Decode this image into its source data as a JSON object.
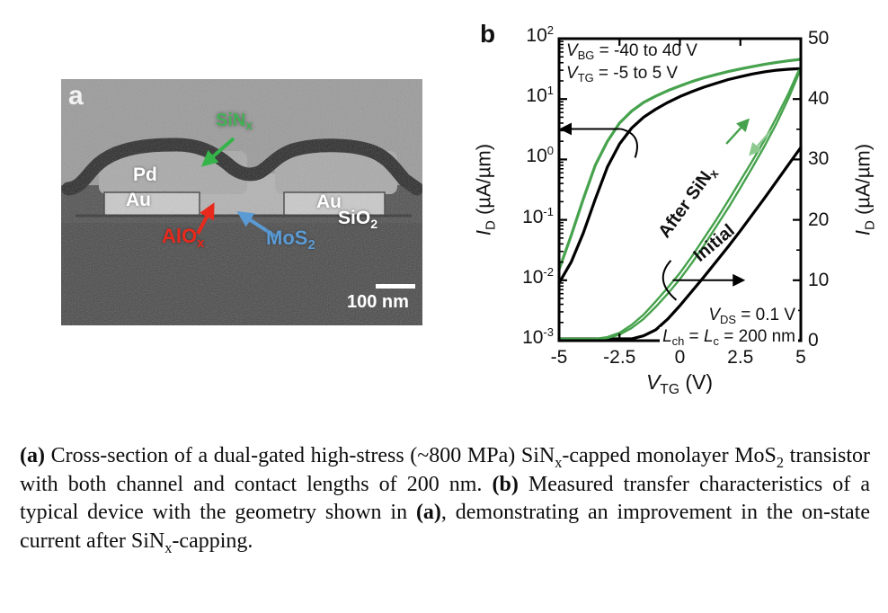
{
  "panel_a": {
    "label": "a",
    "labels": {
      "sin": [
        {
          "t": "SiN"
        },
        {
          "t": "x",
          "sub": 1
        }
      ],
      "pd": "Pd",
      "au_left": "Au",
      "au_right": "Au",
      "sio2": [
        {
          "t": "SiO"
        },
        {
          "t": "2",
          "sub": 1
        }
      ],
      "alox": [
        {
          "t": "AlO"
        },
        {
          "t": "x",
          "sub": 1
        }
      ],
      "mos2": [
        {
          "t": "MoS"
        },
        {
          "t": "2",
          "sub": 1
        }
      ],
      "scale_bar": "100 nm"
    },
    "colors": {
      "sin_arrow": "#35b44a",
      "alox_arrow": "#e8291c",
      "mos2_arrow": "#5b9bd5",
      "text": "#ffffff"
    }
  },
  "panel_b": {
    "label": "b",
    "chart_data": {
      "type": "line",
      "x_axis": {
        "label_segments": [
          {
            "t": "V",
            "i": 1
          },
          {
            "t": "TG",
            "sub": 1
          },
          {
            "t": " (V)"
          }
        ],
        "ticks": [
          -5,
          -2.5,
          0,
          2.5,
          5
        ],
        "range": [
          -5,
          5
        ]
      },
      "left_axis": {
        "label_segments": [
          {
            "t": "I",
            "i": 1
          },
          {
            "t": "D",
            "sub": 1
          },
          {
            "t": " (µA/µm)"
          }
        ],
        "scale": "log",
        "tick_exponents": [
          2,
          1,
          0,
          -1,
          -2,
          -3
        ],
        "range_exp": [
          -3,
          2
        ]
      },
      "right_axis": {
        "label_segments": [
          {
            "t": "I",
            "i": 1
          },
          {
            "t": "D",
            "sub": 1
          },
          {
            "t": " (µA/µm)"
          }
        ],
        "scale": "linear",
        "ticks": [
          50,
          40,
          30,
          20,
          10,
          0
        ],
        "minor_step": 5,
        "range": [
          0,
          50
        ]
      },
      "annotations": {
        "vbg": [
          {
            "t": "V",
            "i": 1
          },
          {
            "t": "BG",
            "sub": 1
          },
          {
            "t": " = -40 to 40 V"
          }
        ],
        "vtg": [
          {
            "t": "V",
            "i": 1
          },
          {
            "t": "TG",
            "sub": 1
          },
          {
            "t": " = -5 to 5 V"
          }
        ],
        "vds": [
          {
            "t": "V",
            "i": 1
          },
          {
            "t": "DS",
            "sub": 1
          },
          {
            "t": " = 0.1 V"
          }
        ],
        "lch": [
          {
            "t": "L",
            "i": 1
          },
          {
            "t": "ch",
            "sub": 1
          },
          {
            "t": " = "
          },
          {
            "t": "L",
            "i": 1
          },
          {
            "t": "c",
            "sub": 1
          },
          {
            "t": " = 200 nm"
          }
        ]
      },
      "curve_labels": {
        "after_sin": {
          "segments": [
            {
              "t": "After SiN"
            },
            {
              "t": "x",
              "sub": 1
            }
          ],
          "color": "#46a24c"
        },
        "initial": {
          "segments": [
            {
              "t": "Initial"
            }
          ],
          "color": "#000000"
        }
      },
      "series": [
        {
          "name": "Initial (log scale, left axis)",
          "color": "#000000",
          "axis": "log",
          "width": 3.2,
          "x": [
            -5,
            -4.5,
            -4,
            -3.5,
            -3,
            -2.5,
            -2,
            -1.5,
            -1,
            -0.5,
            0,
            0.5,
            1,
            1.5,
            2,
            2.5,
            3,
            3.5,
            4,
            4.5,
            5
          ],
          "y": [
            0.009,
            0.02,
            0.06,
            0.22,
            0.75,
            1.8,
            3.3,
            5.0,
            6.8,
            8.8,
            11,
            13.3,
            15.8,
            18.3,
            21,
            23.5,
            26,
            28.2,
            30,
            31.2,
            32
          ]
        },
        {
          "name": "Initial (linear scale, right axis)",
          "color": "#000000",
          "axis": "linear",
          "width": 3.2,
          "x": [
            -5,
            -3,
            -2.5,
            -2,
            -1.5,
            -1,
            -0.5,
            0,
            0.5,
            1,
            1.5,
            2,
            2.5,
            3,
            3.5,
            4,
            4.5,
            5
          ],
          "y": [
            0.01,
            0.04,
            0.1,
            0.3,
            0.8,
            1.8,
            3.6,
            5.8,
            8.2,
            10.6,
            13.1,
            15.6,
            18.2,
            20.9,
            23.6,
            26.4,
            29.2,
            32
          ]
        },
        {
          "name": "After SiNx (log scale, left axis)",
          "color": "#46a24c",
          "axis": "log",
          "width": 3.2,
          "x": [
            -5,
            -4.5,
            -4,
            -3.5,
            -3,
            -2.5,
            -2,
            -1.5,
            -1,
            -0.5,
            0,
            0.5,
            1,
            1.5,
            2,
            2.5,
            3,
            3.5,
            4,
            4.5,
            5
          ],
          "y": [
            0.015,
            0.055,
            0.22,
            0.8,
            2.0,
            4.0,
            6.3,
            8.8,
            11.2,
            13.8,
            16.5,
            19.5,
            22.5,
            25.5,
            28.5,
            31.5,
            34.5,
            37.5,
            40.5,
            43,
            45.5
          ]
        },
        {
          "name": "After SiNx (linear, forward sweep)",
          "color": "#46a24c",
          "axis": "linear",
          "width": 2.4,
          "x": [
            -5,
            -4,
            -3.5,
            -3,
            -2.5,
            -2,
            -1.5,
            -1,
            -0.5,
            0,
            0.5,
            1,
            1.5,
            2,
            2.5,
            3,
            3.5,
            4,
            4.5,
            5
          ],
          "y": [
            0.02,
            0.1,
            0.25,
            0.6,
            1.3,
            2.6,
            4.3,
            6.5,
            8.8,
            11.2,
            14,
            17,
            20,
            23.2,
            26.5,
            29.8,
            33.2,
            37,
            41,
            45.5
          ]
        },
        {
          "name": "After SiNx (linear, reverse sweep)",
          "color": "#46a24c",
          "axis": "linear",
          "width": 2.4,
          "x": [
            -5,
            -4,
            -3.5,
            -3,
            -2.5,
            -2,
            -1.5,
            -1,
            -0.5,
            0,
            0.5,
            1,
            1.5,
            2,
            2.5,
            3,
            3.5,
            4,
            4.5,
            5
          ],
          "y": [
            0.015,
            0.07,
            0.18,
            0.45,
            1.0,
            2.1,
            3.6,
            5.6,
            7.8,
            10.2,
            12.9,
            15.8,
            18.9,
            22,
            25.3,
            28.7,
            32.2,
            36,
            40.2,
            45
          ]
        }
      ],
      "direction_arrows": [
        {
          "from": [
            1.92,
            32.6
          ],
          "to": [
            2.81,
            36.5
          ],
          "color": "#46a24c"
        },
        {
          "from": [
            3.77,
            34.8
          ],
          "to": [
            2.92,
            30.9
          ],
          "color": "#8cc98f"
        }
      ],
      "axis_pointers": {
        "left": {
          "I": 3.2,
          "from_V": -2.45
        },
        "right": {
          "v": 10,
          "from_V": -0.3,
          "to_V": 2.6
        }
      }
    }
  },
  "caption": {
    "segments": [
      {
        "t": "(a)",
        "b": 1
      },
      {
        "t": " Cross-section of a dual-gated high-stress (~800 MPa) SiN"
      },
      {
        "t": "x",
        "sub": 1
      },
      {
        "t": "-capped monolayer MoS"
      },
      {
        "t": "2",
        "sub": 1
      },
      {
        "t": " transistor with both channel and contact lengths of 200 nm. "
      },
      {
        "t": "(b)",
        "b": 1
      },
      {
        "t": " Measured transfer characteristics of a typical device with the geometry shown in "
      },
      {
        "t": "(a)",
        "b": 1
      },
      {
        "t": ", demonstrating an improvement in the on-state current after SiN"
      },
      {
        "t": "x",
        "sub": 1
      },
      {
        "t": "-capping."
      }
    ]
  }
}
